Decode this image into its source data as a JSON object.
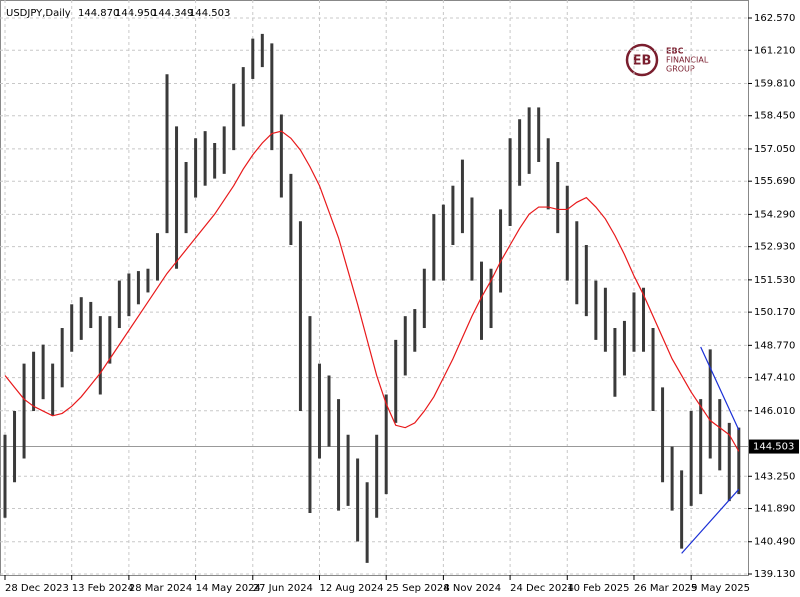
{
  "chart_data": {
    "type": "ohlc",
    "symbol": "USDJPY,Daily",
    "header_values": [
      {
        "value": 144.87,
        "label": "144.870"
      },
      {
        "value": 144.95,
        "label": "144.950"
      },
      {
        "value": 144.349,
        "label": "144.349"
      },
      {
        "value": 144.503,
        "label": "144.503"
      }
    ],
    "logo": [
      "EBC",
      "FINANCIAL",
      "GROUP"
    ],
    "categories": [
      "28 Dec 2023",
      null,
      null,
      null,
      null,
      null,
      null,
      "13 Feb 2024",
      null,
      null,
      null,
      null,
      null,
      "28 Mar 2024",
      null,
      null,
      null,
      null,
      null,
      null,
      "14 May 2024",
      null,
      null,
      null,
      null,
      null,
      "27 Jun 2024",
      null,
      null,
      null,
      null,
      null,
      null,
      "12 Aug 2024",
      null,
      null,
      null,
      null,
      null,
      null,
      "25 Sep 2024",
      null,
      null,
      null,
      null,
      null,
      "8 Nov 2024",
      null,
      null,
      null,
      null,
      null,
      null,
      "24 Dec 2024",
      null,
      null,
      null,
      null,
      null,
      "10 Feb 2025",
      null,
      null,
      null,
      null,
      null,
      null,
      "26 Mar 2025",
      null,
      null,
      null,
      null,
      null,
      "9 May 2025",
      null,
      null,
      null,
      null,
      null
    ],
    "high": [
      145,
      146,
      148,
      148.5,
      148.8,
      148,
      149.5,
      150.5,
      150.8,
      150.6,
      150,
      150,
      151.5,
      151.8,
      151.9,
      152,
      153.5,
      160.2,
      158,
      156.5,
      157.5,
      157.8,
      157.3,
      158,
      159.8,
      160.5,
      161.7,
      161.9,
      161.5,
      158.5,
      156,
      154,
      150,
      148,
      147.5,
      146.5,
      145,
      144,
      143,
      145,
      146.7,
      149,
      150,
      150.3,
      152,
      154.3,
      154.7,
      155.5,
      156.6,
      155,
      152.3,
      152,
      154.5,
      157.5,
      158.3,
      158.8,
      158.8,
      157.5,
      156.5,
      155.5,
      154,
      153,
      151.5,
      151.2,
      149.5,
      149.8,
      151,
      151.2,
      149.5,
      147,
      144.5,
      143.5,
      146,
      146.5,
      148.6,
      146.5,
      145.5,
      145.3
    ],
    "low": [
      141.5,
      143,
      144,
      146,
      146.5,
      145.8,
      147,
      148.5,
      149,
      149.5,
      146.7,
      148,
      149.5,
      150,
      150.5,
      151,
      151.5,
      153.5,
      152,
      153.5,
      155,
      155.5,
      155.8,
      156,
      157,
      158,
      160,
      160.5,
      157,
      155,
      153,
      146,
      141.7,
      144,
      144.5,
      141.8,
      142,
      140.5,
      139.6,
      141.5,
      142.5,
      145.5,
      147.5,
      148.5,
      149.5,
      151.5,
      151.5,
      153,
      153.5,
      151.5,
      149,
      149.5,
      151,
      153.8,
      155.5,
      156,
      156.5,
      154.5,
      153.5,
      151.5,
      150.5,
      150,
      149,
      148.5,
      146.6,
      147.5,
      148.5,
      148.5,
      146,
      143,
      141.8,
      140.2,
      142,
      142.5,
      144,
      143.5,
      142.2,
      142.5
    ],
    "moving_average": {
      "color": "#e8191b",
      "values": [
        147.5,
        147.0,
        146.5,
        146.2,
        146.0,
        145.8,
        145.9,
        146.2,
        146.6,
        147.1,
        147.6,
        148.2,
        148.8,
        149.4,
        150.0,
        150.6,
        151.2,
        151.8,
        152.3,
        152.8,
        153.3,
        153.8,
        154.3,
        154.9,
        155.5,
        156.2,
        156.8,
        157.3,
        157.7,
        157.8,
        157.5,
        157.0,
        156.3,
        155.5,
        154.4,
        153.3,
        151.9,
        150.5,
        149.0,
        147.5,
        146.3,
        145.4,
        145.3,
        145.5,
        146.0,
        146.6,
        147.4,
        148.2,
        149.1,
        150.0,
        150.8,
        151.5,
        152.3,
        153.0,
        153.7,
        154.3,
        154.6,
        154.6,
        154.5,
        154.5,
        154.8,
        155.0,
        154.6,
        154.1,
        153.4,
        152.6,
        151.7,
        150.9,
        150.0,
        149.1,
        148.2,
        147.5,
        146.8,
        146.2,
        145.6,
        145.3,
        145.0,
        144.3
      ]
    },
    "trendlines": [
      {
        "color": "#1a2fd6",
        "x": [
          73,
          77
        ],
        "values": [
          148.7,
          145.2
        ]
      },
      {
        "color": "#1a2fd6",
        "x": [
          71,
          77
        ],
        "values": [
          140.0,
          142.7
        ]
      }
    ],
    "bar_color": "#3a3a3a",
    "last_price": {
      "value": 144.503,
      "label": "144.503"
    },
    "ylim": [
      139.13,
      162.57
    ],
    "yticks": [
      {
        "value": 162.57,
        "label": "162.570"
      },
      {
        "value": 161.21,
        "label": "161.210"
      },
      {
        "value": 159.81,
        "label": "159.810"
      },
      {
        "value": 158.45,
        "label": "158.450"
      },
      {
        "value": 157.05,
        "label": "157.050"
      },
      {
        "value": 155.69,
        "label": "155.690"
      },
      {
        "value": 154.29,
        "label": "154.290"
      },
      {
        "value": 152.93,
        "label": "152.930"
      },
      {
        "value": 151.53,
        "label": "151.530"
      },
      {
        "value": 150.17,
        "label": "150.170"
      },
      {
        "value": 148.77,
        "label": "148.770"
      },
      {
        "value": 147.41,
        "label": "147.410"
      },
      {
        "value": 146.01,
        "label": "146.010"
      },
      {
        "value": 143.25,
        "label": "143.250"
      },
      {
        "value": 141.89,
        "label": "141.890"
      },
      {
        "value": 140.49,
        "label": "140.490"
      },
      {
        "value": 139.13,
        "label": "139.130"
      }
    ],
    "grid": true
  }
}
